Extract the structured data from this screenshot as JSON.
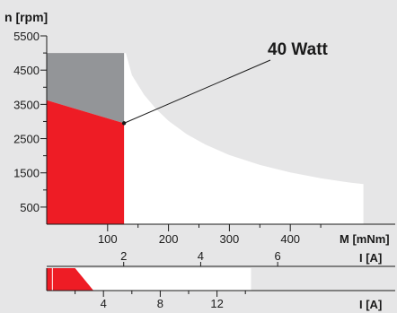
{
  "chart_data": [
    {
      "type": "area",
      "ylabel": "n [rpm]",
      "xlabel": "M [mNm]",
      "secondary_xlabel": "I [A]",
      "ylim": [
        0,
        5500
      ],
      "xlim": [
        0,
        555
      ],
      "y_ticks": [
        500,
        1500,
        2500,
        3500,
        4500,
        5500
      ],
      "y_minor_ticks": [
        1000,
        2000,
        3000,
        4000,
        5000
      ],
      "x_ticks": [
        100,
        200,
        300,
        400
      ],
      "x_minor_ticks": [
        150,
        250,
        350,
        450
      ],
      "secondary_x_ticks": [
        2,
        4,
        6
      ],
      "current_per_mNm": 0.01582,
      "series": [
        {
          "name": "",
          "kind": "red_region",
          "color": "#ee1c25",
          "points": [
            [
              0,
              0
            ],
            [
              0,
              3620
            ],
            [
              127,
              2950
            ],
            [
              127,
              0
            ]
          ]
        },
        {
          "name": "",
          "kind": "gray_region",
          "color": "#939598",
          "points": [
            [
              0,
              3620
            ],
            [
              0,
              5000
            ],
            [
              127,
              5000
            ],
            [
              127,
              2950
            ]
          ]
        },
        {
          "name": "",
          "kind": "white_region",
          "color": "#ffffff",
          "points": [
            [
              127,
              0
            ],
            [
              127,
              5000
            ],
            [
              130,
              5000
            ],
            [
              140,
              4350
            ],
            [
              160,
              3780
            ],
            [
              180,
              3360
            ],
            [
              200,
              3020
            ],
            [
              230,
              2630
            ],
            [
              260,
              2330
            ],
            [
              300,
              2020
            ],
            [
              350,
              1730
            ],
            [
              400,
              1510
            ],
            [
              450,
              1340
            ],
            [
              500,
              1210
            ],
            [
              520,
              1170
            ],
            [
              520,
              0
            ]
          ]
        }
      ],
      "annotation": {
        "label": "40 Watt",
        "point": [
          127,
          2950
        ]
      }
    },
    {
      "type": "bar",
      "xlabel": "I [A]",
      "x_ticks": [
        4,
        8,
        12
      ],
      "x_minor_ticks": [
        2,
        6,
        10,
        14
      ],
      "x_per_I": 0.0625,
      "bar_end": 14.4,
      "red_end": 3.3,
      "red_start": 2.0,
      "marker_at": 0.4
    }
  ]
}
